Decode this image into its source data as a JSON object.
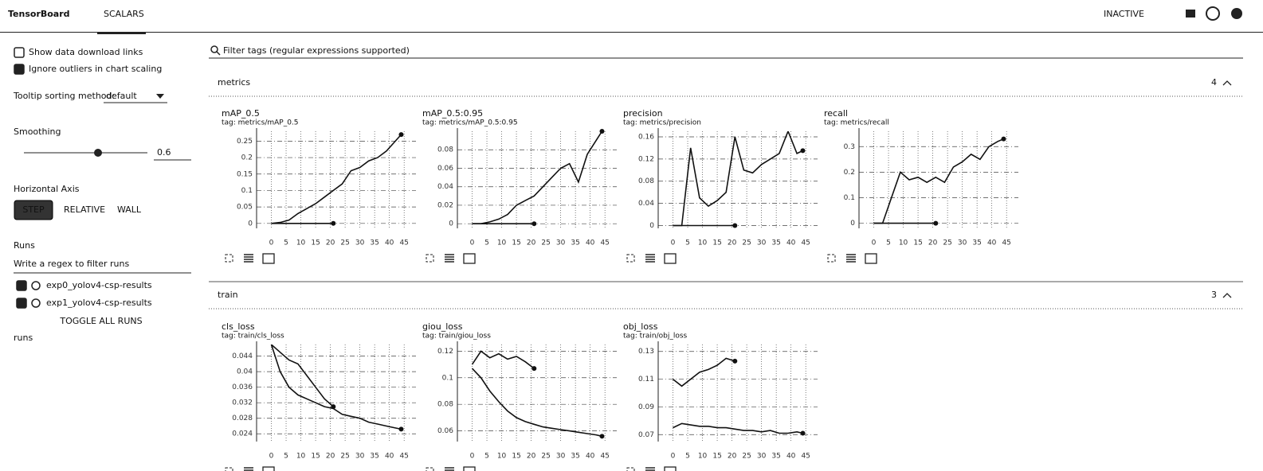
{
  "header": {
    "title": "TensorBoard",
    "tabs": [
      "SCALARS"
    ],
    "status": "INACTIVE"
  },
  "sidebar": {
    "show_download": "Show data download links",
    "ignore_outliers": "Ignore outliers in chart scaling",
    "tooltip_label": "Tooltip sorting method:",
    "tooltip_value": "default",
    "smoothing_label": "Smoothing",
    "smoothing_value": 0.6,
    "axis_label": "Horizontal Axis",
    "axis_options": [
      "STEP",
      "RELATIVE",
      "WALL"
    ],
    "runs_label": "Runs",
    "runs_filter": "Write a regex to filter runs",
    "runs": [
      "exp0_yolov4-csp-results",
      "exp1_yolov4-csp-results"
    ],
    "toggle": "TOGGLE ALL RUNS",
    "runs_dir": "runs"
  },
  "filter": "Filter tags (regular expressions supported)",
  "sections": [
    {
      "name": "metrics",
      "count": 4
    },
    {
      "name": "train",
      "count": 3
    }
  ],
  "chart_data": [
    {
      "type": "line",
      "title": "mAP_0.5",
      "subtitle": "tag: metrics/mAP_0.5",
      "x": [
        0,
        3,
        6,
        9,
        12,
        15,
        18,
        21,
        24,
        27,
        30,
        33,
        36,
        39,
        42,
        44
      ],
      "series": [
        {
          "color": "#111111",
          "values": [
            0,
            0,
            0,
            0,
            0,
            0,
            0,
            0,
            null,
            null,
            null,
            null,
            null,
            null,
            null,
            null
          ]
        },
        {
          "color": "#111111",
          "values": [
            0,
            0.003,
            0.01,
            0.03,
            0.045,
            0.06,
            0.08,
            0.1,
            0.12,
            0.16,
            0.17,
            0.19,
            0.2,
            0.22,
            0.25,
            0.27
          ]
        }
      ],
      "xlim": [
        -5,
        49
      ],
      "ylim": [
        -0.015,
        0.28
      ],
      "xticks": [
        0,
        5,
        10,
        15,
        20,
        25,
        30,
        35,
        40,
        45
      ],
      "yticks": [
        0,
        0.05,
        0.1,
        0.15,
        0.2,
        0.25
      ],
      "grid": true
    },
    {
      "type": "line",
      "title": "mAP_0.5:0.95",
      "subtitle": "tag: metrics/mAP_0.5:0.95",
      "x": [
        0,
        3,
        6,
        9,
        12,
        15,
        18,
        21,
        24,
        27,
        30,
        33,
        36,
        39,
        42,
        44
      ],
      "series": [
        {
          "color": "#111111",
          "values": [
            0,
            0,
            0,
            0,
            0,
            0,
            0,
            0,
            null,
            null,
            null,
            null,
            null,
            null,
            null,
            null
          ]
        },
        {
          "color": "#111111",
          "values": [
            0,
            0,
            0.002,
            0.005,
            0.01,
            0.02,
            0.025,
            0.03,
            0.04,
            0.05,
            0.06,
            0.065,
            0.045,
            0.075,
            0.09,
            0.1
          ]
        }
      ],
      "xlim": [
        -5,
        49
      ],
      "ylim": [
        -0.005,
        0.1
      ],
      "xticks": [
        0,
        5,
        10,
        15,
        20,
        25,
        30,
        35,
        40,
        45
      ],
      "yticks": [
        0,
        0.02,
        0.04,
        0.06,
        0.08
      ],
      "grid": true
    },
    {
      "type": "line",
      "title": "precision",
      "subtitle": "tag: metrics/precision",
      "x": [
        0,
        3,
        6,
        9,
        12,
        15,
        18,
        21,
        24,
        27,
        30,
        33,
        36,
        39,
        42,
        44
      ],
      "series": [
        {
          "color": "#111111",
          "values": [
            0,
            0,
            0,
            0,
            0,
            0,
            0,
            0,
            null,
            null,
            null,
            null,
            null,
            null,
            null,
            null
          ]
        },
        {
          "color": "#111111",
          "values": [
            0,
            0,
            0.14,
            0.05,
            0.035,
            0.045,
            0.06,
            0.16,
            0.1,
            0.095,
            0.11,
            0.12,
            0.13,
            0.17,
            0.13,
            0.135
          ]
        }
      ],
      "xlim": [
        -5,
        49
      ],
      "ylim": [
        -0.005,
        0.17
      ],
      "xticks": [
        0,
        5,
        10,
        15,
        20,
        25,
        30,
        35,
        40,
        45
      ],
      "yticks": [
        0,
        0.04,
        0.08,
        0.12,
        0.16
      ],
      "grid": true
    },
    {
      "type": "line",
      "title": "recall",
      "subtitle": "tag: metrics/recall",
      "x": [
        0,
        3,
        6,
        9,
        12,
        15,
        18,
        21,
        24,
        27,
        30,
        33,
        36,
        39,
        42,
        44
      ],
      "series": [
        {
          "color": "#111111",
          "values": [
            0,
            0,
            0,
            0,
            0,
            0,
            0,
            0,
            null,
            null,
            null,
            null,
            null,
            null,
            null,
            null
          ]
        },
        {
          "color": "#111111",
          "values": [
            0,
            0,
            0.1,
            0.2,
            0.17,
            0.18,
            0.16,
            0.18,
            0.16,
            0.22,
            0.24,
            0.27,
            0.25,
            0.3,
            0.32,
            0.33
          ]
        }
      ],
      "xlim": [
        -5,
        49
      ],
      "ylim": [
        -0.02,
        0.36
      ],
      "xticks": [
        0,
        5,
        10,
        15,
        20,
        25,
        30,
        35,
        40,
        45
      ],
      "yticks": [
        0,
        0.1,
        0.2,
        0.3
      ],
      "grid": true
    },
    {
      "type": "line",
      "title": "cls_loss",
      "subtitle": "tag: train/cls_loss",
      "x": [
        0,
        3,
        6,
        9,
        12,
        15,
        18,
        21,
        24,
        27,
        30,
        33,
        36,
        39,
        42,
        44
      ],
      "series": [
        {
          "color": "#111111",
          "values": [
            0.047,
            0.045,
            0.043,
            0.042,
            0.039,
            0.036,
            0.033,
            0.031,
            null,
            null,
            null,
            null,
            null,
            null,
            null,
            null
          ]
        },
        {
          "color": "#111111",
          "values": [
            0.047,
            0.04,
            0.036,
            0.034,
            0.033,
            0.032,
            0.031,
            0.0305,
            0.029,
            0.0285,
            0.028,
            0.027,
            0.0265,
            0.026,
            0.0255,
            0.0252
          ]
        }
      ],
      "xlim": [
        -5,
        49
      ],
      "ylim": [
        0.022,
        0.047
      ],
      "xticks": [
        0,
        5,
        10,
        15,
        20,
        25,
        30,
        35,
        40,
        45
      ],
      "yticks": [
        0.024,
        0.028,
        0.032,
        0.036,
        0.04,
        0.044
      ],
      "grid": true
    },
    {
      "type": "line",
      "title": "giou_loss",
      "subtitle": "tag: train/giou_loss",
      "x": [
        0,
        3,
        6,
        9,
        12,
        15,
        18,
        21,
        24,
        27,
        30,
        33,
        36,
        39,
        42,
        44
      ],
      "series": [
        {
          "color": "#111111",
          "values": [
            0.11,
            0.12,
            0.115,
            0.118,
            0.114,
            0.116,
            0.112,
            0.107,
            null,
            null,
            null,
            null,
            null,
            null,
            null,
            null
          ]
        },
        {
          "color": "#111111",
          "values": [
            0.107,
            0.1,
            0.09,
            0.082,
            0.075,
            0.07,
            0.067,
            0.065,
            0.063,
            0.062,
            0.061,
            0.06,
            0.059,
            0.058,
            0.057,
            0.056
          ]
        }
      ],
      "xlim": [
        -5,
        49
      ],
      "ylim": [
        0.052,
        0.125
      ],
      "xticks": [
        0,
        5,
        10,
        15,
        20,
        25,
        30,
        35,
        40,
        45
      ],
      "yticks": [
        0.06,
        0.08,
        0.1,
        0.12
      ],
      "grid": true
    },
    {
      "type": "line",
      "title": "obj_loss",
      "subtitle": "tag: train/obj_loss",
      "x": [
        0,
        3,
        6,
        9,
        12,
        15,
        18,
        21,
        24,
        27,
        30,
        33,
        36,
        39,
        42,
        44
      ],
      "series": [
        {
          "color": "#111111",
          "values": [
            0.11,
            0.105,
            0.11,
            0.115,
            0.117,
            0.12,
            0.125,
            0.123,
            null,
            null,
            null,
            null,
            null,
            null,
            null,
            null
          ]
        },
        {
          "color": "#111111",
          "values": [
            0.075,
            0.078,
            0.077,
            0.076,
            0.076,
            0.075,
            0.075,
            0.074,
            0.073,
            0.073,
            0.072,
            0.073,
            0.071,
            0.071,
            0.072,
            0.071
          ]
        }
      ],
      "xlim": [
        -5,
        49
      ],
      "ylim": [
        0.065,
        0.135
      ],
      "xticks": [
        0,
        5,
        10,
        15,
        20,
        25,
        30,
        35,
        40,
        45
      ],
      "yticks": [
        0.07,
        0.09,
        0.11,
        0.13
      ],
      "grid": true
    }
  ]
}
